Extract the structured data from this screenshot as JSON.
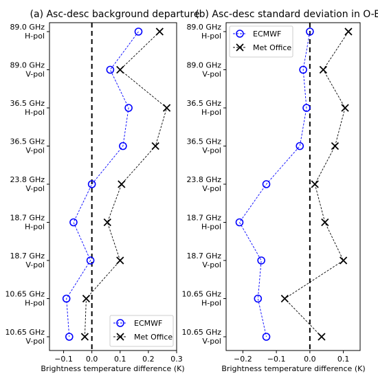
{
  "chart_data": [
    {
      "type": "line",
      "title": "(a) Asc-desc background departure",
      "xlabel": "Brightness temperature difference (K)",
      "ylabel": "",
      "xlim": [
        -0.15,
        0.3
      ],
      "xticks": [
        -0.1,
        0.0,
        0.1,
        0.2,
        0.3
      ],
      "xtick_labels": [
        "−0.1",
        "0.0",
        "0.1",
        "0.2",
        "0.3"
      ],
      "categories": [
        [
          "89.0 GHz",
          "H-pol"
        ],
        [
          "89.0 GHz",
          "V-pol"
        ],
        [
          "36.5 GHz",
          "H-pol"
        ],
        [
          "36.5 GHz",
          "V-pol"
        ],
        [
          "23.8 GHz",
          "V-pol"
        ],
        [
          "18.7 GHz",
          "H-pol"
        ],
        [
          "18.7 GHz",
          "V-pol"
        ],
        [
          "10.65 GHz",
          "H-pol"
        ],
        [
          "10.65 GHz",
          "V-pol"
        ]
      ],
      "zero_line": true,
      "legend_position": "lower-right",
      "series": [
        {
          "name": "ECMWF",
          "marker": "circle",
          "color": "#0000ff",
          "values": [
            0.165,
            0.065,
            0.13,
            0.11,
            0.0,
            -0.065,
            -0.005,
            -0.09,
            -0.08
          ]
        },
        {
          "name": "Met Office",
          "marker": "x",
          "color": "#000000",
          "values": [
            0.24,
            0.1,
            0.265,
            0.225,
            0.105,
            0.055,
            0.1,
            -0.02,
            -0.025
          ]
        }
      ]
    },
    {
      "type": "line",
      "title": "(b) Asc-desc standard deviation in O-B",
      "xlabel": "Brightness temperature difference (K)",
      "ylabel": "",
      "xlim": [
        -0.25,
        0.15
      ],
      "xticks": [
        -0.2,
        -0.1,
        0.0,
        0.1
      ],
      "xtick_labels": [
        "−0.2",
        "−0.1",
        "0.0",
        "0.1"
      ],
      "categories": [
        [
          "89.0 GHz",
          "H-pol"
        ],
        [
          "89.0 GHz",
          "V-pol"
        ],
        [
          "36.5 GHz",
          "H-pol"
        ],
        [
          "36.5 GHz",
          "V-pol"
        ],
        [
          "23.8 GHz",
          "V-pol"
        ],
        [
          "18.7 GHz",
          "H-pol"
        ],
        [
          "18.7 GHz",
          "V-pol"
        ],
        [
          "10.65 GHz",
          "H-pol"
        ],
        [
          "10.65 GHz",
          "V-pol"
        ]
      ],
      "zero_line": true,
      "legend_position": "upper-left",
      "series": [
        {
          "name": "ECMWF",
          "marker": "circle",
          "color": "#0000ff",
          "values": [
            0.0,
            -0.02,
            -0.01,
            -0.03,
            -0.13,
            -0.21,
            -0.145,
            -0.155,
            -0.13
          ]
        },
        {
          "name": "Met Office",
          "marker": "x",
          "color": "#000000",
          "values": [
            0.115,
            0.04,
            0.105,
            0.075,
            0.015,
            0.045,
            0.1,
            -0.075,
            0.035
          ]
        }
      ]
    }
  ]
}
